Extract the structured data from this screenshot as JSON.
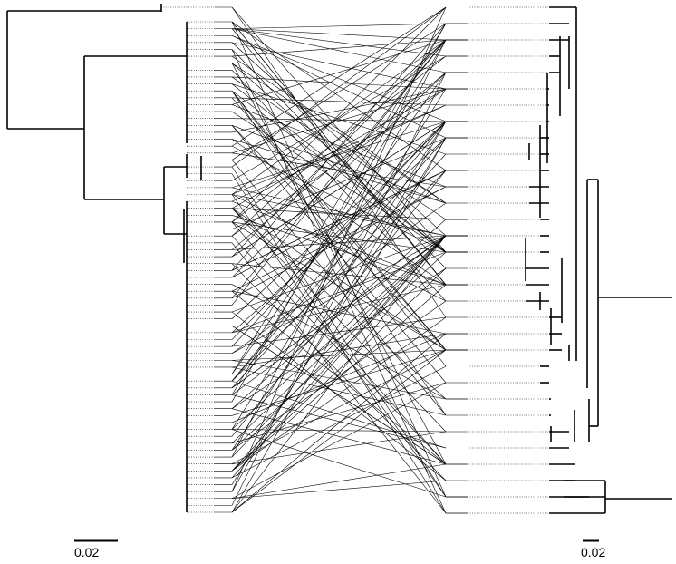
{
  "scale_bars": {
    "left_label": "0.02",
    "right_label": "0.02"
  },
  "trees": {
    "left_leaf_count": 73,
    "right_leaf_count": 32
  },
  "colors": {
    "line": "#000000",
    "background": "#ffffff"
  }
}
